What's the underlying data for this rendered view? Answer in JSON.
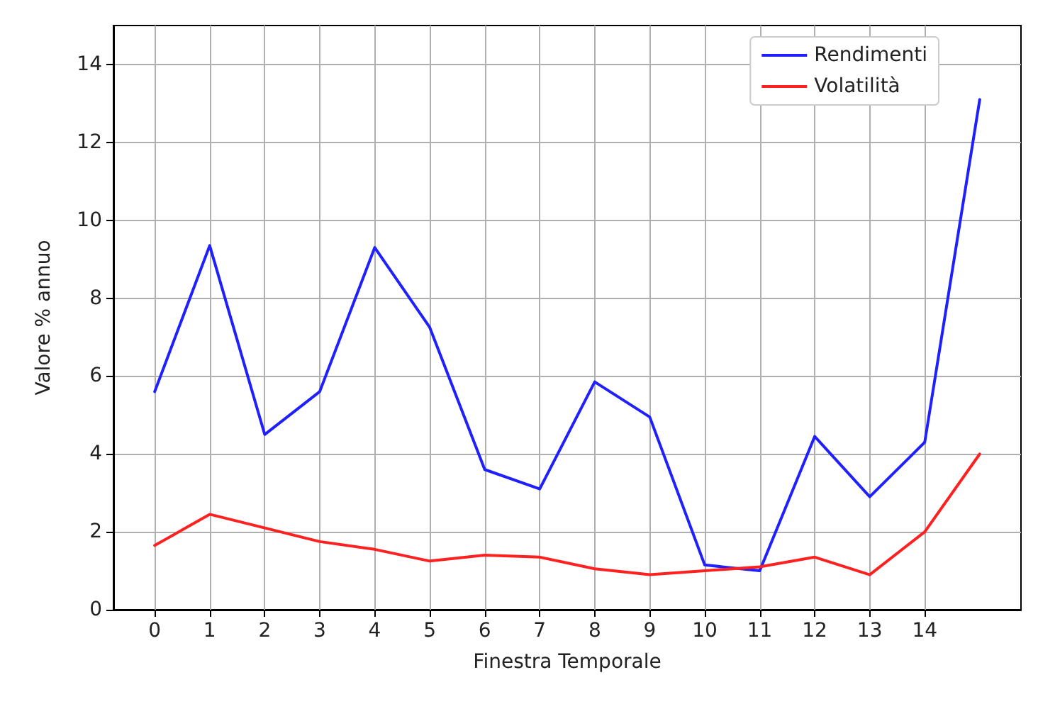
{
  "chart_data": {
    "type": "line",
    "xlabel": "Finestra Temporale",
    "ylabel": "Valore % annuo",
    "x": [
      0,
      1,
      2,
      3,
      4,
      5,
      6,
      7,
      8,
      9,
      10,
      11,
      12,
      13,
      14,
      15
    ],
    "series": [
      {
        "name": "Rendimenti",
        "color": "#2020ff",
        "values": [
          5.6,
          9.35,
          4.5,
          5.6,
          9.3,
          7.25,
          3.6,
          3.1,
          5.85,
          4.95,
          1.15,
          1.0,
          4.45,
          2.9,
          4.3,
          13.1
        ]
      },
      {
        "name": "Volatilità",
        "color": "#ff2020",
        "values": [
          1.65,
          2.45,
          2.1,
          1.75,
          1.55,
          1.25,
          1.4,
          1.35,
          1.05,
          0.9,
          1.0,
          1.1,
          1.35,
          0.9,
          2.0,
          4.0
        ]
      }
    ],
    "xlim": [
      -0.75,
      15.75
    ],
    "xticks": [
      0,
      1,
      2,
      3,
      4,
      5,
      6,
      7,
      8,
      9,
      10,
      11,
      12,
      13,
      14
    ],
    "ylim": [
      0,
      15
    ],
    "yticks": [
      0,
      2,
      4,
      6,
      8,
      10,
      12,
      14
    ],
    "grid": true,
    "legend": "top right",
    "marker": "none",
    "line_style": "solid"
  }
}
